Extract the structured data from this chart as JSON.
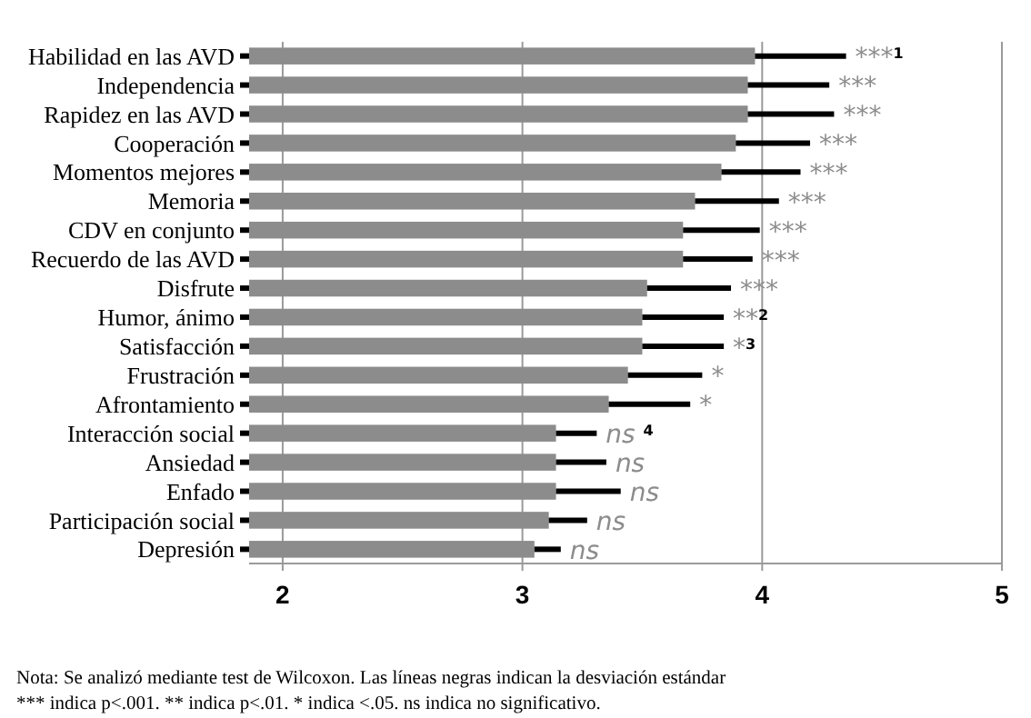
{
  "chart_data": {
    "type": "bar",
    "orientation": "horizontal",
    "categories": [
      "Habilidad en las AVD",
      "Independencia",
      "Rapidez en las AVD",
      "Cooperación",
      "Momentos mejores",
      "Memoria",
      "CDV en conjunto",
      "Recuerdo de las AVD",
      "Disfrute",
      "Humor, ánimo",
      "Satisfacción",
      "Frustración",
      "Afrontamiento",
      "Interacción social",
      "Ansiedad",
      "Enfado",
      "Participación social",
      "Depresión"
    ],
    "values": [
      3.97,
      3.94,
      3.94,
      3.89,
      3.83,
      3.72,
      3.67,
      3.67,
      3.52,
      3.5,
      3.5,
      3.44,
      3.36,
      3.14,
      3.14,
      3.14,
      3.11,
      3.05
    ],
    "errors": [
      [
        3.97,
        4.35
      ],
      [
        3.94,
        4.28
      ],
      [
        3.94,
        4.3
      ],
      [
        3.89,
        4.2
      ],
      [
        3.83,
        4.16
      ],
      [
        3.72,
        4.07
      ],
      [
        3.67,
        3.99
      ],
      [
        3.67,
        3.96
      ],
      [
        3.52,
        3.87
      ],
      [
        3.5,
        3.84
      ],
      [
        3.5,
        3.84
      ],
      [
        3.44,
        3.75
      ],
      [
        3.36,
        3.7
      ],
      [
        3.14,
        3.31
      ],
      [
        3.14,
        3.35
      ],
      [
        3.14,
        3.41
      ],
      [
        3.11,
        3.27
      ],
      [
        3.05,
        3.16
      ]
    ],
    "color": "#8c8c8c",
    "xlim": [
      1.86,
      5
    ],
    "xticks": [
      2,
      3,
      4,
      5
    ],
    "grid": "x",
    "annotations": [
      "***$^{1}$",
      "***",
      "***",
      "***",
      "***",
      "***",
      "***",
      "***",
      "***",
      "**$^{2}$",
      "*$^{3}$",
      "*",
      "*",
      "ns $^{4}$",
      "ns",
      "ns",
      "ns",
      "ns",
      "Nota: Se analizó mediante test de Wilcoxon. Las líneas negras indican la desviación estándar",
      "*** indica p<.001. ** indica p<.01. * indica <.05. ns indica no significativo."
    ]
  }
}
